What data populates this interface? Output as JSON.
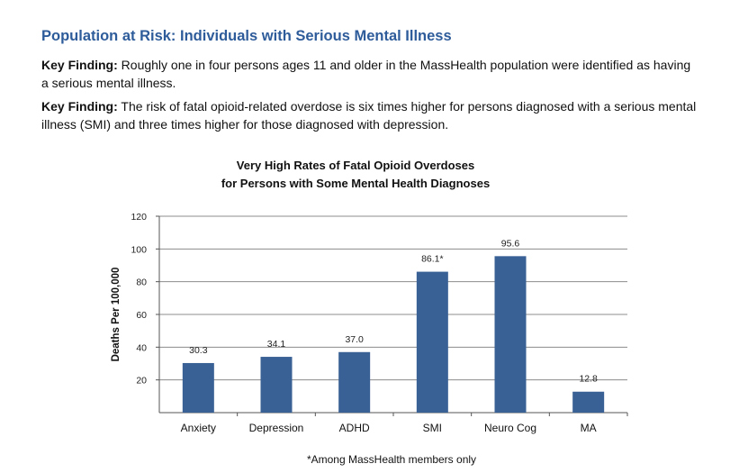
{
  "heading": "Population at Risk: Individuals with Serious Mental Illness",
  "findings": [
    {
      "label": "Key Finding:",
      "text": " Roughly one in four persons ages 11 and older in the MassHealth population were identified as having a serious mental illness."
    },
    {
      "label": "Key Finding:",
      "text": " The risk of fatal opioid-related overdose is six times higher for persons diagnosed with a serious mental illness (SMI) and three times higher for those diagnosed with depression."
    }
  ],
  "footnote": "*Among MassHealth members only",
  "colors": {
    "bar": "#3a6195",
    "heading": "#2e5c9a",
    "grid": "#8c8c8c"
  },
  "chart_data": {
    "type": "bar",
    "title_lines": [
      "Very High Rates of Fatal Opioid Overdoses",
      "for Persons with Some Mental Health Diagnoses"
    ],
    "categories": [
      "Anxiety",
      "Depression",
      "ADHD",
      "SMI",
      "Neuro Cog",
      "MA"
    ],
    "values": [
      30.3,
      34.1,
      37.0,
      86.1,
      95.6,
      12.8
    ],
    "value_labels": [
      "30.3",
      "34.1",
      "37.0",
      "86.1*",
      "95.6",
      "12.8"
    ],
    "ylabel": "Deaths Per 100,000",
    "xlabel": "",
    "ylim": [
      0,
      120
    ],
    "yticks": [
      20,
      40,
      60,
      80,
      100,
      120
    ],
    "grid": true
  }
}
